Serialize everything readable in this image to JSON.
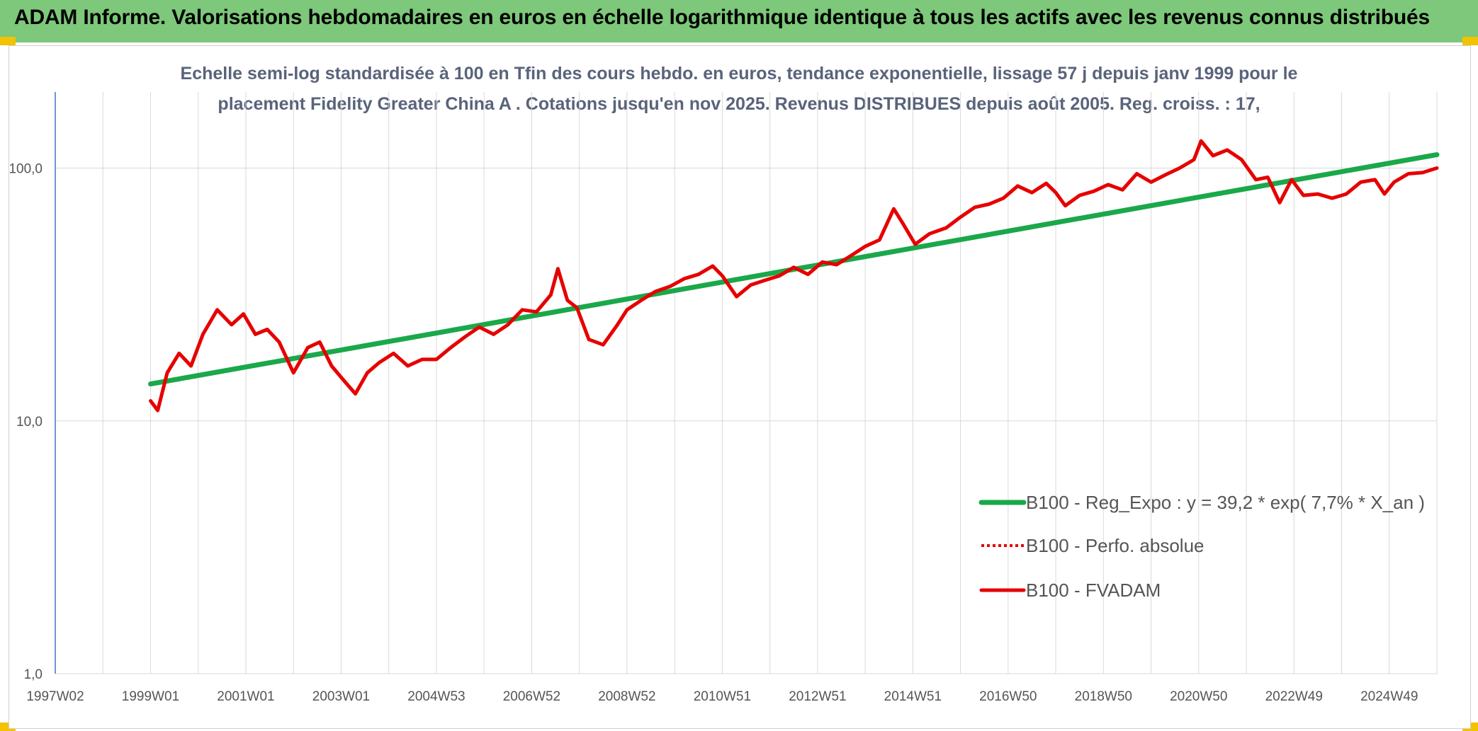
{
  "header": {
    "title": "ADAM Informe. Valorisations hebdomadaires en euros en échelle logarithmique identique à tous les actifs avec les revenus connus distribués"
  },
  "chart_data": {
    "type": "line",
    "title_line1": "Echelle semi-log standardisée à 100 en Tfin des cours hebdo. en euros, tendance exponentielle, lissage 57 j depuis janv 1999 pour le",
    "title_line2": "placement Fidelity Greater China A . Cotations jusqu'en nov 2025. Revenus DISTRIBUES depuis août 2005. Reg. croiss. : 17,",
    "y_scale": "log",
    "ylim": [
      1,
      200
    ],
    "y_ticks": [
      1,
      10,
      100
    ],
    "y_tick_labels": [
      "1,0",
      "10,0",
      "100,0"
    ],
    "x_range": [
      1997.0,
      2026.0
    ],
    "x_ticks": [
      1997.0,
      1999.0,
      2001.0,
      2003.0,
      2005.0,
      2007.0,
      2009.0,
      2011.0,
      2013.0,
      2015.0,
      2017.0,
      2019.0,
      2021.0,
      2023.0,
      2025.0
    ],
    "x_tick_labels": [
      "1997W02",
      "1999W01",
      "2001W01",
      "2003W01",
      "2004W53",
      "2006W52",
      "2008W52",
      "2010W51",
      "2012W51",
      "2014W51",
      "2016W50",
      "2018W50",
      "2020W50",
      "2022W49",
      "2024W49"
    ],
    "grid": true,
    "legend_position": "bottom-right",
    "colors": {
      "trend": "#1aa84a",
      "series": "#e60000",
      "axis": "#4472c4",
      "grid": "#d9d9d9"
    },
    "series": [
      {
        "name": "B100 - Reg_Expo : y = 39,2 * exp( 7,7% *  X_an )",
        "style": "solid-green",
        "x": [
          1999.0,
          2026.0
        ],
        "y": [
          14.0,
          113.0
        ]
      },
      {
        "name": "B100 - Perfo. absolue",
        "style": "dotted-red",
        "x": [],
        "y": []
      },
      {
        "name": "B100 - FVADAM",
        "style": "solid-red",
        "x": [
          1999.0,
          1999.15,
          1999.35,
          1999.6,
          1999.85,
          2000.1,
          2000.4,
          2000.7,
          2000.95,
          2001.2,
          2001.45,
          2001.7,
          2002.0,
          2002.3,
          2002.55,
          2002.8,
          2003.05,
          2003.3,
          2003.55,
          2003.8,
          2004.1,
          2004.4,
          2004.7,
          2005.0,
          2005.3,
          2005.6,
          2005.9,
          2006.2,
          2006.5,
          2006.8,
          2007.1,
          2007.4,
          2007.55,
          2007.75,
          2007.95,
          2008.2,
          2008.5,
          2008.8,
          2009.0,
          2009.3,
          2009.6,
          2009.9,
          2010.2,
          2010.5,
          2010.8,
          2011.0,
          2011.3,
          2011.6,
          2011.9,
          2012.2,
          2012.5,
          2012.8,
          2013.1,
          2013.4,
          2013.7,
          2014.0,
          2014.3,
          2014.6,
          2014.8,
          2015.05,
          2015.35,
          2015.7,
          2016.0,
          2016.3,
          2016.6,
          2016.9,
          2017.2,
          2017.5,
          2017.8,
          2018.0,
          2018.2,
          2018.5,
          2018.8,
          2019.1,
          2019.4,
          2019.7,
          2020.0,
          2020.3,
          2020.6,
          2020.9,
          2021.05,
          2021.3,
          2021.6,
          2021.9,
          2022.2,
          2022.45,
          2022.7,
          2022.95,
          2023.2,
          2023.5,
          2023.8,
          2024.1,
          2024.4,
          2024.7,
          2024.9,
          2025.1,
          2025.4,
          2025.7,
          2026.0
        ],
        "y": [
          12.0,
          11.0,
          15.5,
          18.5,
          16.5,
          22.0,
          27.5,
          24.0,
          26.5,
          22.0,
          23.0,
          20.5,
          15.5,
          19.5,
          20.5,
          16.5,
          14.5,
          12.8,
          15.5,
          17.0,
          18.5,
          16.5,
          17.5,
          17.5,
          19.5,
          21.5,
          23.5,
          22.0,
          24.0,
          27.5,
          27.0,
          31.5,
          40.0,
          30.0,
          28.0,
          21.0,
          20.0,
          24.0,
          27.5,
          30.0,
          32.5,
          34.0,
          36.5,
          38.0,
          41.0,
          37.5,
          31.0,
          34.5,
          36.0,
          37.5,
          40.5,
          38.0,
          42.5,
          41.5,
          45.0,
          49.0,
          52.0,
          69.0,
          60.0,
          50.0,
          55.0,
          58.0,
          64.0,
          70.0,
          72.0,
          76.0,
          85.0,
          80.0,
          87.0,
          80.0,
          71.0,
          78.0,
          81.0,
          86.0,
          82.0,
          95.0,
          88.0,
          94.0,
          100.0,
          108.0,
          128.0,
          112.0,
          118.0,
          108.0,
          90.0,
          92.0,
          73.0,
          90.0,
          78.0,
          79.0,
          76.0,
          79.0,
          88.0,
          90.0,
          79.0,
          88.0,
          95.0,
          96.0,
          100.0
        ]
      }
    ]
  }
}
